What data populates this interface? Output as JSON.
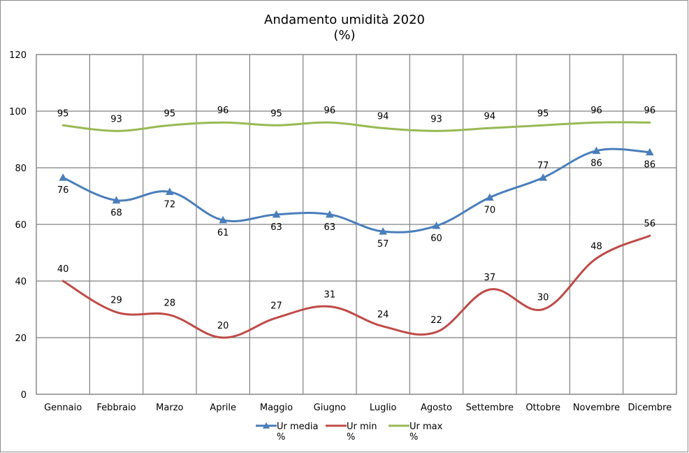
{
  "chart_data": {
    "type": "line",
    "title": "Andamento umidità 2020",
    "subtitle": "(%)",
    "xlabel": "",
    "ylabel": "",
    "ylim": [
      0,
      120
    ],
    "yticks": [
      "0",
      "20",
      "40",
      "60",
      "80",
      "100",
      "120"
    ],
    "grid": true,
    "legend_position": "bottom",
    "categories": [
      "Gennaio",
      "Febbraio",
      "Marzo",
      "Aprile",
      "Maggio",
      "Giugno",
      "Luglio",
      "Agosto",
      "Settembre",
      "Ottobre",
      "Novembre",
      "Dicembre"
    ],
    "series": [
      {
        "name": "Ur media",
        "unit": "%",
        "color": "#4a7ebb",
        "marker": "triangle",
        "values": [
          76.5,
          68.5,
          71.5,
          61.5,
          63.5,
          63.5,
          57.5,
          59.5,
          69.5,
          76.5,
          86,
          85.5
        ],
        "labels": [
          "76",
          "68",
          "72",
          "61",
          "63",
          "63",
          "57",
          "60",
          "70",
          "77",
          "86",
          "86"
        ]
      },
      {
        "name": "Ur min",
        "unit": "%",
        "color": "#be4b48",
        "marker": "none",
        "values": [
          40,
          29,
          28,
          20,
          27,
          31,
          24,
          22,
          37,
          30,
          48,
          56
        ],
        "labels": [
          "40",
          "29",
          "28",
          "20",
          "27",
          "31",
          "24",
          "22",
          "37",
          "30",
          "48",
          "56"
        ]
      },
      {
        "name": "Ur max",
        "unit": "%",
        "color": "#98b954",
        "marker": "none",
        "values": [
          95,
          93,
          95,
          96,
          95,
          96,
          94,
          93,
          94,
          95,
          96,
          96
        ],
        "labels": [
          "95",
          "93",
          "95",
          "96",
          "95",
          "96",
          "94",
          "93",
          "94",
          "95",
          "96",
          "96"
        ]
      }
    ]
  }
}
